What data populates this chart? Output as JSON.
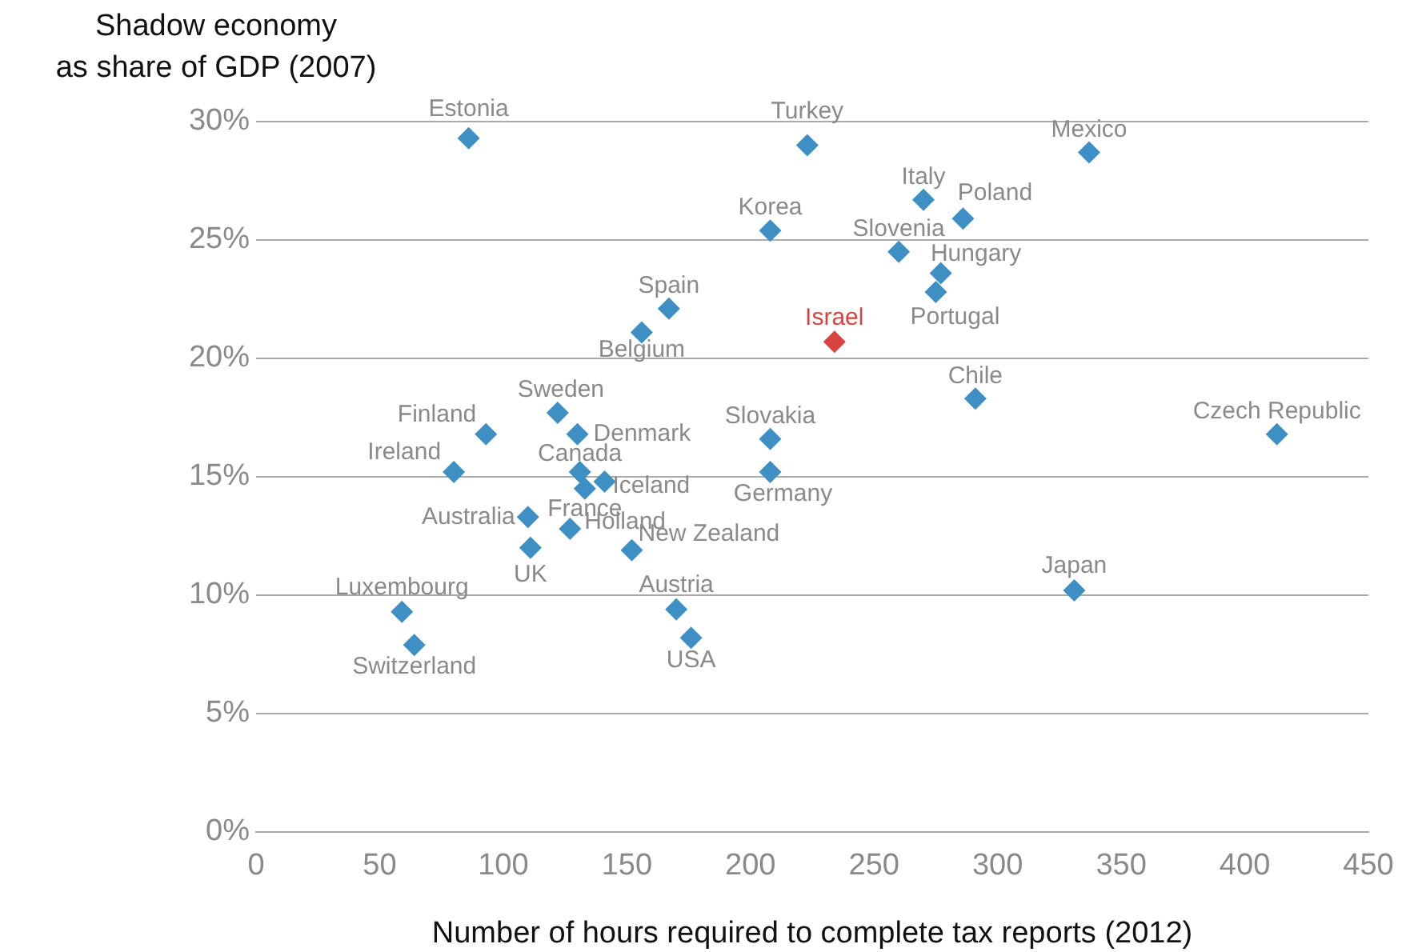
{
  "chart_data": {
    "type": "scatter",
    "ylabel": "Shadow economy\nas share of GDP (2007)",
    "xlabel": "Number of hours required to complete tax reports (2012)",
    "xlim": [
      0,
      450
    ],
    "xticks": [
      0,
      50,
      100,
      150,
      200,
      250,
      300,
      350,
      400,
      450
    ],
    "ylim": [
      0,
      30
    ],
    "yticks": [
      {
        "value": 0,
        "label": "0%"
      },
      {
        "value": 5,
        "label": "5%"
      },
      {
        "value": 10,
        "label": "10%"
      },
      {
        "value": 15,
        "label": "15%"
      },
      {
        "value": 20,
        "label": "20%"
      },
      {
        "value": 25,
        "label": "25%"
      },
      {
        "value": 30,
        "label": "30%"
      }
    ],
    "grid": "y",
    "legend": false,
    "marker": "diamond",
    "series": [
      {
        "name": "Estonia",
        "color": "#3d8fc4",
        "x": [
          86
        ],
        "values": [
          29.3
        ]
      },
      {
        "name": "Turkey",
        "color": "#3d8fc4",
        "x": [
          223
        ],
        "values": [
          29.0
        ]
      },
      {
        "name": "Korea",
        "color": "#3d8fc4",
        "x": [
          208
        ],
        "values": [
          25.4
        ]
      },
      {
        "name": "Spain",
        "color": "#3d8fc4",
        "x": [
          167
        ],
        "values": [
          22.1
        ]
      },
      {
        "name": "Belgium",
        "color": "#3d8fc4",
        "x": [
          156
        ],
        "values": [
          21.1
        ]
      },
      {
        "name": "Mexico",
        "color": "#3d8fc4",
        "x": [
          337
        ],
        "values": [
          28.7
        ]
      },
      {
        "name": "Italy",
        "color": "#3d8fc4",
        "x": [
          270
        ],
        "values": [
          26.7
        ]
      },
      {
        "name": "Poland",
        "color": "#3d8fc4",
        "x": [
          286
        ],
        "values": [
          25.9
        ]
      },
      {
        "name": "Slovenia",
        "color": "#3d8fc4",
        "x": [
          260
        ],
        "values": [
          24.5
        ]
      },
      {
        "name": "Hungary",
        "color": "#3d8fc4",
        "x": [
          277
        ],
        "values": [
          23.6
        ]
      },
      {
        "name": "Portugal",
        "color": "#3d8fc4",
        "x": [
          275
        ],
        "values": [
          22.8
        ]
      },
      {
        "name": "Israel",
        "color": "#d9423f",
        "x": [
          234
        ],
        "values": [
          20.7
        ]
      },
      {
        "name": "Chile",
        "color": "#3d8fc4",
        "x": [
          291
        ],
        "values": [
          18.3
        ]
      },
      {
        "name": "Czech Republic",
        "color": "#3d8fc4",
        "x": [
          413
        ],
        "values": [
          16.8
        ]
      },
      {
        "name": "Slovakia",
        "color": "#3d8fc4",
        "x": [
          208
        ],
        "values": [
          16.6
        ]
      },
      {
        "name": "Germany",
        "color": "#3d8fc4",
        "x": [
          208
        ],
        "values": [
          15.2
        ]
      },
      {
        "name": "Japan",
        "color": "#3d8fc4",
        "x": [
          331
        ],
        "values": [
          10.2
        ]
      },
      {
        "name": "Sweden",
        "color": "#3d8fc4",
        "x": [
          122
        ],
        "values": [
          17.7
        ]
      },
      {
        "name": "Finland",
        "color": "#3d8fc4",
        "x": [
          93
        ],
        "values": [
          16.8
        ]
      },
      {
        "name": "Denmark",
        "color": "#3d8fc4",
        "x": [
          130
        ],
        "values": [
          16.8
        ]
      },
      {
        "name": "Ireland",
        "color": "#3d8fc4",
        "x": [
          80
        ],
        "values": [
          15.2
        ]
      },
      {
        "name": "Canada",
        "color": "#3d8fc4",
        "x": [
          131
        ],
        "values": [
          15.2
        ]
      },
      {
        "name": "Iceland",
        "color": "#3d8fc4",
        "x": [
          141
        ],
        "values": [
          14.8
        ]
      },
      {
        "name": "France",
        "color": "#3d8fc4",
        "x": [
          133
        ],
        "values": [
          14.5
        ]
      },
      {
        "name": "Holland",
        "color": "#3d8fc4",
        "x": [
          127
        ],
        "values": [
          12.8
        ]
      },
      {
        "name": "UK",
        "color": "#3d8fc4",
        "x": [
          111
        ],
        "values": [
          12.0
        ]
      },
      {
        "name": "Australia",
        "color": "#3d8fc4",
        "x": [
          110
        ],
        "values": [
          13.3
        ]
      },
      {
        "name": "New Zealand",
        "color": "#3d8fc4",
        "x": [
          152
        ],
        "values": [
          11.9
        ]
      },
      {
        "name": "Luxembourg",
        "color": "#3d8fc4",
        "x": [
          59
        ],
        "values": [
          9.3
        ]
      },
      {
        "name": "Switzerland",
        "color": "#3d8fc4",
        "x": [
          64
        ],
        "values": [
          7.9
        ]
      },
      {
        "name": "Austria",
        "color": "#3d8fc4",
        "x": [
          170
        ],
        "values": [
          9.4
        ]
      },
      {
        "name": "USA",
        "color": "#3d8fc4",
        "x": [
          176
        ],
        "values": [
          8.2
        ]
      }
    ]
  }
}
